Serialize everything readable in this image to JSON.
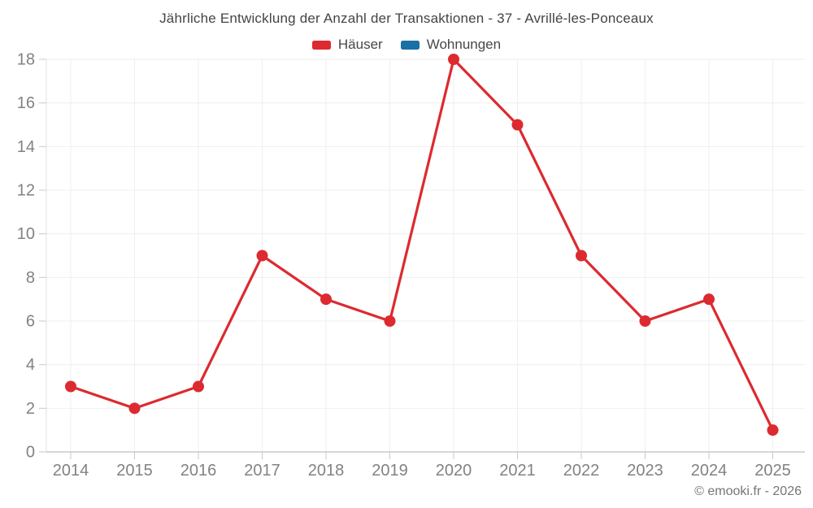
{
  "title": "Jährliche Entwicklung der Anzahl der Transaktionen - 37 - Avrillé-les-Ponceaux",
  "legend": {
    "items": [
      {
        "label": "Häuser",
        "color": "#dc2a30"
      },
      {
        "label": "Wohnungen",
        "color": "#1a6fa5"
      }
    ]
  },
  "footer": {
    "credit": "© emooki.fr - 2026"
  },
  "chart_data": {
    "type": "line",
    "title": "Jährliche Entwicklung der Anzahl der Transaktionen - 37 - Avrillé-les-Ponceaux",
    "categories": [
      "2014",
      "2015",
      "2016",
      "2017",
      "2018",
      "2019",
      "2020",
      "2021",
      "2022",
      "2023",
      "2024",
      "2025"
    ],
    "series": [
      {
        "name": "Häuser",
        "color": "#dc2a30",
        "values": [
          3,
          2,
          3,
          9,
          7,
          6,
          18,
          15,
          9,
          6,
          7,
          1
        ]
      },
      {
        "name": "Wohnungen",
        "color": "#1a6fa5",
        "values": []
      }
    ],
    "xlabel": "",
    "ylabel": "",
    "ylim": [
      0,
      18
    ],
    "yticks": [
      0,
      2,
      4,
      6,
      8,
      10,
      12,
      14,
      16,
      18
    ],
    "grid": true,
    "legend_position": "top",
    "point_radius": 7,
    "line_width": 3.2
  }
}
